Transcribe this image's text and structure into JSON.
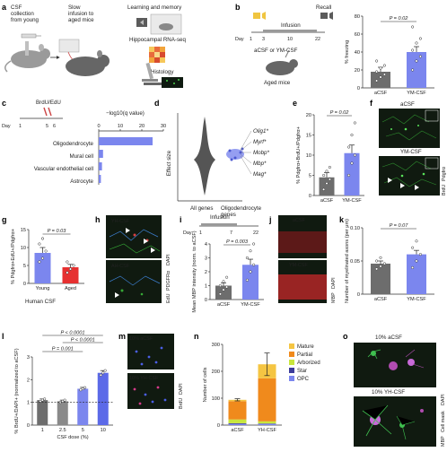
{
  "panels": {
    "a": {
      "letter": "a",
      "csf_collection": "CSF\ncollection\nfrom young",
      "slow_infusion": "Slow\ninfusion to\naged mice",
      "learning": "Learning and memory",
      "rnaseq": "Hippocampal RNA-seq",
      "histology": "Histology"
    },
    "b": {
      "letter": "b",
      "day_label": "Day",
      "infusion": "Infusion",
      "recall": "Recall",
      "days": [
        "1",
        "3",
        "10",
        "22"
      ],
      "group_label": "aCSF or YM-CSF",
      "mice_label": "Aged mice",
      "pvalue": "P = 0.02"
    },
    "c": {
      "letter": "c",
      "brdu_edu": "BrdU/EdU",
      "day_label": "Day",
      "days": [
        "1",
        "5",
        "6"
      ],
      "qlabel": "−log10(q value)",
      "terms": [
        "Oligodendrocyte",
        "Mural cell",
        "Vascular endothelial cell",
        "Astrocyte"
      ]
    },
    "d": {
      "letter": "d",
      "ylabel": "Effect size",
      "genes": [
        "Olig1*",
        "Myrf*",
        "Mobp*",
        "Mbp*",
        "Mag*"
      ],
      "cat_all": "All genes",
      "cat_oligo": "Oligodendrocyte\ngenes"
    },
    "e": {
      "letter": "e",
      "pvalue": "P = 0.02"
    },
    "f": {
      "letter": "f",
      "acsf": "aCSF",
      "ymcsf": "YM-CSF",
      "stain_brdu": "BrdU",
      "stain_pdgfra": "Pdgfrα"
    },
    "g": {
      "letter": "g",
      "pvalue": "P = 0.03",
      "human_csf": "Human CSF"
    },
    "h": {
      "letter": "h",
      "yhcsf": "YH-CSF",
      "ahcsf": "AH-CSF",
      "stain_edu": "EdU",
      "stain_pdgfra": "PDGFRα",
      "stain_dapi": "DAPI"
    },
    "i": {
      "letter": "i",
      "infusion": "Infusion",
      "day_label": "Day",
      "days": [
        "1",
        "7",
        "22"
      ],
      "pvalue": "P = 0.003"
    },
    "j": {
      "letter": "j",
      "acsf": "aCSF",
      "ymcsf": "YM-CSF",
      "stain_mbp": "MBP",
      "stain_dapi": "DAPI"
    },
    "k": {
      "letter": "k",
      "pvalue": "P = 0.07"
    },
    "l": {
      "letter": "l",
      "pvalues": [
        "P < 0.0001",
        "P < 0.0001",
        "P = 0.001"
      ]
    },
    "m": {
      "letter": "m",
      "acsf10": "10% aCSF",
      "yhcsf10": "10% YH-CSF",
      "stain_brdu": "BrdU",
      "stain_dapi": "DAPI"
    },
    "n": {
      "letter": "n",
      "legend": [
        "Mature",
        "Partial",
        "Arborized",
        "Star",
        "OPC"
      ]
    },
    "o": {
      "letter": "o",
      "acsf10": "10% aCSF",
      "yhcsf10": "10% YH-CSF",
      "stain_mbp": "MBP",
      "stain_cellmask": "Cell mask",
      "stain_dapi": "DAPI"
    }
  },
  "chart_data": [
    {
      "panel": "b",
      "type": "bar",
      "categories": [
        "aCSF",
        "YM-CSF"
      ],
      "values": [
        18,
        40
      ],
      "errors": [
        5,
        6
      ],
      "points": [
        [
          8,
          12,
          15,
          18,
          22,
          25,
          30
        ],
        [
          20,
          30,
          35,
          42,
          50,
          55,
          68
        ]
      ],
      "ylabel": "% freezing",
      "ylim": [
        0,
        80
      ],
      "yticks": [
        0,
        20,
        40,
        60,
        80
      ],
      "colors": [
        "#6d6d6d",
        "#7b86ee"
      ]
    },
    {
      "panel": "c",
      "type": "bar",
      "orientation": "horizontal",
      "categories": [
        "Oligodendrocyte",
        "Mural cell",
        "Vascular endothelial cell",
        "Astrocyte"
      ],
      "values": [
        25,
        2,
        1.5,
        1
      ],
      "xlim": [
        0,
        30
      ],
      "xticks": [
        0,
        10,
        20,
        30
      ],
      "color": "#7b86ee"
    },
    {
      "panel": "e",
      "type": "bar",
      "categories": [
        "aCSF",
        "YM-CSF"
      ],
      "values": [
        4.5,
        10.5
      ],
      "errors": [
        1.2,
        2
      ],
      "points": [
        [
          1.5,
          3,
          4,
          5,
          6,
          7
        ],
        [
          5,
          8,
          10,
          12,
          15,
          18
        ]
      ],
      "ylabel": "% Pdgfrα+BrdU+/Pdgfrα+",
      "ylim": [
        0,
        20
      ],
      "yticks": [
        0,
        5,
        10,
        15,
        20
      ],
      "colors": [
        "#6d6d6d",
        "#7b86ee"
      ]
    },
    {
      "panel": "g",
      "type": "bar",
      "categories": [
        "Young",
        "Aged"
      ],
      "values": [
        8.5,
        4.5
      ],
      "errors": [
        1.5,
        0.8
      ],
      "points": [
        [
          6,
          7,
          9,
          11,
          12.5
        ],
        [
          3,
          4,
          5,
          6
        ]
      ],
      "ylabel": "% Pdgfrα+EdU+/Pdgfrα+",
      "ylim": [
        0,
        15
      ],
      "yticks": [
        0,
        5,
        10,
        15
      ],
      "colors": [
        "#7b86ee",
        "#e63030"
      ]
    },
    {
      "panel": "i",
      "type": "bar",
      "categories": [
        "aCSF",
        "YM-CSF"
      ],
      "values": [
        1,
        2.5
      ],
      "errors": [
        0.2,
        0.4
      ],
      "points": [
        [
          0.4,
          0.7,
          0.9,
          1.0,
          1.3,
          1.6
        ],
        [
          1.4,
          2.0,
          2.5,
          3.0,
          3.5,
          4.0
        ]
      ],
      "ylabel": "Mean MBP intensity (norm. to aCSF)",
      "ylim": [
        0,
        4
      ],
      "yticks": [
        0,
        1,
        2,
        3,
        4
      ],
      "colors": [
        "#6d6d6d",
        "#7b86ee"
      ]
    },
    {
      "panel": "k",
      "type": "bar",
      "categories": [
        "aCSF",
        "YM-CSF"
      ],
      "values": [
        0.046,
        0.06
      ],
      "errors": [
        0.004,
        0.006
      ],
      "points": [
        [
          0.038,
          0.042,
          0.046,
          0.05,
          0.055
        ],
        [
          0.04,
          0.05,
          0.06,
          0.07,
          0.08
        ]
      ],
      "ylabel": "Number of myelinated axons (per μm)",
      "ylim": [
        0,
        0.1
      ],
      "yticks": [
        "0",
        "0.05",
        "0.10"
      ],
      "colors": [
        "#6d6d6d",
        "#7b86ee"
      ]
    },
    {
      "panel": "l",
      "type": "bar",
      "categories": [
        "1",
        "2.5",
        "5",
        "10"
      ],
      "values": [
        1.1,
        1.05,
        1.6,
        2.3
      ],
      "errors": [
        0.05,
        0.05,
        0.06,
        0.1
      ],
      "points": [
        [
          1.05,
          1.1,
          1.15
        ],
        [
          1.0,
          1.05,
          1.1
        ],
        [
          1.55,
          1.6,
          1.65
        ],
        [
          2.2,
          2.3,
          2.4
        ]
      ],
      "xlabel": "CSF dose (%)",
      "ylabel": "% BrdU+/DAPI+ (normalized to aCSF)",
      "ylim": [
        0,
        3
      ],
      "yticks": [
        0,
        1,
        2,
        3
      ],
      "colors": [
        "#6d6d6d",
        "#8a8a8a",
        "#7b86ee",
        "#5c6ae8"
      ]
    },
    {
      "panel": "n",
      "type": "bar",
      "stacked": true,
      "categories": [
        "aCSF",
        "YH-CSF"
      ],
      "series": [
        {
          "name": "OPC",
          "values": [
            4,
            4
          ],
          "color": "#7b86ee"
        },
        {
          "name": "Star",
          "values": [
            3,
            2
          ],
          "color": "#3b3b9a"
        },
        {
          "name": "Arborized",
          "values": [
            14,
            8
          ],
          "color": "#c8e63c"
        },
        {
          "name": "Partial",
          "values": [
            68,
            160
          ],
          "color": "#f08a1c"
        },
        {
          "name": "Mature",
          "values": [
            5,
            52
          ],
          "color": "#f5c542"
        }
      ],
      "errors": [
        4,
        42
      ],
      "ylabel": "Number of cells",
      "ylim": [
        0,
        300
      ],
      "yticks": [
        0,
        100,
        200,
        300
      ]
    }
  ]
}
